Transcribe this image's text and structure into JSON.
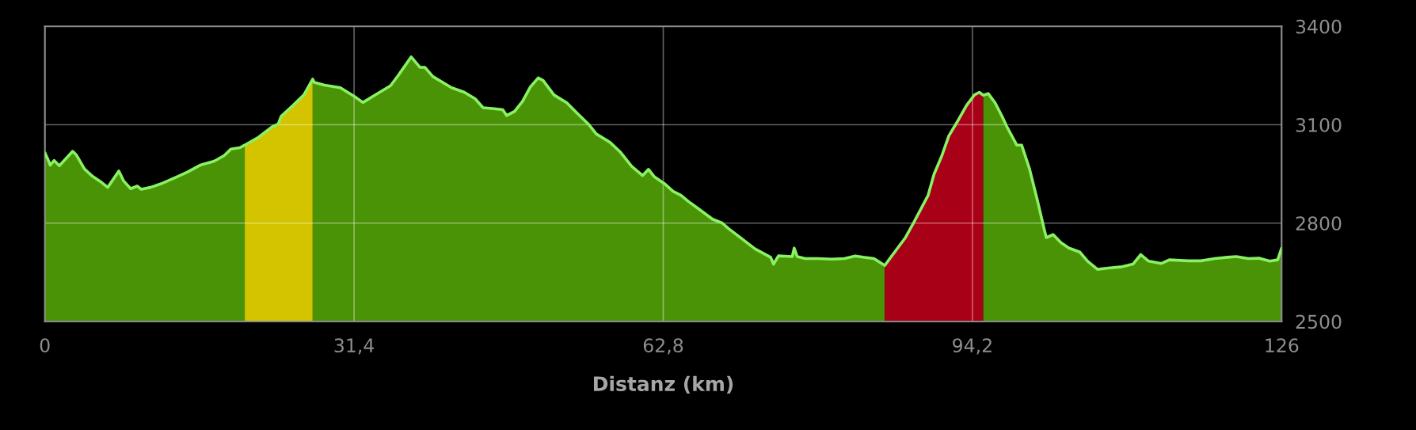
{
  "chart_data": {
    "type": "area",
    "xlabel": "Distanz (km)",
    "xlim": [
      0,
      125.6
    ],
    "xticks": [
      0,
      {
        "value": 31.4,
        "label": "31,4"
      },
      {
        "value": 62.8,
        "label": "62,8"
      },
      {
        "value": 94.2,
        "label": "94,2"
      },
      {
        "value": 125.6,
        "label": "126"
      }
    ],
    "ylim": [
      2500,
      3400
    ],
    "yticks": [
      2500,
      2800,
      3100,
      3400
    ],
    "grid": true,
    "series": [
      {
        "color": "#4a9307",
        "x": [
          0,
          0.27,
          0.54,
          0.94,
          1.47,
          2.14,
          2.82,
          3.22,
          4.02,
          4.83,
          5.63,
          6.38,
          7.51,
          7.99,
          8.71,
          9.38,
          9.79,
          10.72,
          11.8,
          13.4,
          14.5,
          15.8,
          17.2,
          18.2,
          18.9,
          19.8,
          20.3
        ],
        "values": [
          3014,
          2997,
          2977,
          2991,
          2975,
          2997,
          3019,
          3007,
          2965,
          2943,
          2927,
          2909,
          2959,
          2929,
          2905,
          2913,
          2903,
          2909,
          2920,
          2941,
          2956,
          2977,
          2989,
          3006,
          3026,
          3030,
          3038
        ]
      },
      {
        "color": "#d4c400",
        "x": [
          20.3,
          21.7,
          23.1,
          23.7,
          24.0,
          25.2,
          26.3,
          27.2
        ],
        "values": [
          3038,
          3062,
          3094,
          3102,
          3126,
          3159,
          3191,
          3239
        ]
      },
      {
        "color": "#4a9307",
        "x": [
          27.2,
          27.35,
          28.4,
          30.0,
          31.4,
          32.3,
          33.6,
          35.1,
          35.9,
          37.2,
          38.1,
          38.6,
          39.4,
          41.3,
          42.6,
          43.7,
          44.5,
          45.6,
          46.5,
          46.9,
          47.7,
          48.5,
          49.3,
          50.1,
          50.6,
          51.7,
          53.0,
          54.1,
          55.2,
          56.0,
          57.4,
          58.4,
          59.6,
          60.7,
          61.3,
          61.9,
          62.9,
          63.8,
          64.6,
          65.4,
          66.5,
          67.8,
          68.8,
          69.4,
          70.8,
          72.1,
          73.7,
          74.0,
          74.5,
          75.9,
          76.1,
          76.4,
          77.2,
          78.5,
          79.9,
          81.2,
          82.3,
          83.1,
          84.2,
          85.3
        ],
        "values": [
          3239,
          3229,
          3221,
          3213,
          3187,
          3168,
          3192,
          3219,
          3251,
          3307,
          3275,
          3275,
          3247,
          3213,
          3199,
          3179,
          3152,
          3149,
          3146,
          3128,
          3141,
          3171,
          3215,
          3243,
          3235,
          3191,
          3167,
          3134,
          3102,
          3072,
          3046,
          3018,
          2973,
          2945,
          2964,
          2941,
          2921,
          2897,
          2885,
          2865,
          2841,
          2812,
          2800,
          2784,
          2752,
          2722,
          2696,
          2675,
          2700,
          2698,
          2724,
          2698,
          2692,
          2692,
          2690,
          2692,
          2700,
          2696,
          2692,
          2671
        ]
      },
      {
        "color": "#a80016",
        "x": [
          85.3,
          86.6,
          87.4,
          88.2,
          89.0,
          89.7,
          90.3,
          91.1,
          91.8,
          92.6,
          93.6,
          94.4,
          94.9,
          95.3
        ],
        "values": [
          2671,
          2724,
          2756,
          2800,
          2845,
          2885,
          2949,
          3006,
          3066,
          3106,
          3159,
          3191,
          3199,
          3190
        ]
      },
      {
        "color": "#4a9307",
        "x": [
          95.3,
          95.8,
          96.5,
          97.2,
          97.7,
          98.7,
          99.2,
          100.0,
          100.8,
          101.5,
          101.7,
          102.4,
          103.2,
          104.0,
          105.1,
          105.9,
          106.9,
          108.0,
          109.4,
          110.5,
          111.3,
          112.1,
          113.4,
          114.2,
          116.1,
          117.4,
          118.8,
          120.1,
          121.0,
          122.2,
          123.3,
          124.4,
          125.2,
          125.6
        ],
        "values": [
          3190,
          3195,
          3167,
          3126,
          3094,
          3038,
          3038,
          2965,
          2869,
          2780,
          2756,
          2765,
          2740,
          2724,
          2712,
          2684,
          2659,
          2663,
          2667,
          2675,
          2704,
          2684,
          2677,
          2688,
          2685,
          2685,
          2692,
          2696,
          2698,
          2692,
          2693,
          2684,
          2688,
          2724
        ]
      },
      {
        "type": "line",
        "color": "#88f263",
        "x": [
          0,
          0.27,
          0.54,
          0.94,
          1.47,
          2.14,
          2.82,
          3.22,
          4.02,
          4.83,
          5.63,
          6.38,
          7.51,
          7.99,
          8.71,
          9.38,
          9.79,
          10.72,
          11.8,
          13.4,
          14.5,
          15.8,
          17.2,
          18.2,
          18.9,
          19.8,
          20.3,
          21.7,
          23.1,
          23.7,
          24.0,
          25.2,
          26.3,
          27.2,
          27.35,
          28.4,
          30.0,
          31.4,
          32.3,
          33.6,
          35.1,
          35.9,
          37.2,
          38.1,
          38.6,
          39.4,
          41.3,
          42.6,
          43.7,
          44.5,
          45.6,
          46.5,
          46.9,
          47.7,
          48.5,
          49.3,
          50.1,
          50.6,
          51.7,
          53.0,
          54.1,
          55.2,
          56.0,
          57.4,
          58.4,
          59.6,
          60.7,
          61.3,
          61.9,
          62.9,
          63.8,
          64.6,
          65.4,
          66.5,
          67.8,
          68.8,
          69.4,
          70.8,
          72.1,
          73.7,
          74.0,
          74.5,
          75.9,
          76.1,
          76.4,
          77.2,
          78.5,
          79.9,
          81.2,
          82.3,
          83.1,
          84.2,
          85.3,
          86.6,
          87.4,
          88.2,
          89.0,
          89.7,
          90.3,
          91.1,
          91.8,
          92.6,
          93.6,
          94.4,
          94.9,
          95.3,
          95.8,
          96.5,
          97.2,
          97.7,
          98.7,
          99.2,
          100.0,
          100.8,
          101.5,
          101.7,
          102.4,
          103.2,
          104.0,
          105.1,
          105.9,
          106.9,
          108.0,
          109.4,
          110.5,
          111.3,
          112.1,
          113.4,
          114.2,
          116.1,
          117.4,
          118.8,
          120.1,
          121.0,
          122.2,
          123.3,
          124.4,
          125.2,
          125.6
        ],
        "values": [
          3014,
          2997,
          2977,
          2991,
          2975,
          2997,
          3019,
          3007,
          2965,
          2943,
          2927,
          2909,
          2959,
          2929,
          2905,
          2913,
          2903,
          2909,
          2920,
          2941,
          2956,
          2977,
          2989,
          3006,
          3026,
          3030,
          3038,
          3062,
          3094,
          3102,
          3126,
          3159,
          3191,
          3239,
          3229,
          3221,
          3213,
          3187,
          3168,
          3192,
          3219,
          3251,
          3307,
          3275,
          3275,
          3247,
          3213,
          3199,
          3179,
          3152,
          3149,
          3146,
          3128,
          3141,
          3171,
          3215,
          3243,
          3235,
          3191,
          3167,
          3134,
          3102,
          3072,
          3046,
          3018,
          2973,
          2945,
          2964,
          2941,
          2921,
          2897,
          2885,
          2865,
          2841,
          2812,
          2800,
          2784,
          2752,
          2722,
          2696,
          2675,
          2700,
          2698,
          2724,
          2698,
          2692,
          2692,
          2690,
          2692,
          2700,
          2696,
          2692,
          2671,
          2724,
          2756,
          2800,
          2845,
          2885,
          2949,
          3006,
          3066,
          3106,
          3159,
          3191,
          3199,
          3190,
          3195,
          3167,
          3126,
          3094,
          3038,
          3038,
          2965,
          2869,
          2780,
          2756,
          2765,
          2740,
          2724,
          2712,
          2684,
          2659,
          2663,
          2667,
          2675,
          2704,
          2684,
          2677,
          2688,
          2685,
          2685,
          2692,
          2696,
          2698,
          2692,
          2693,
          2684,
          2688,
          2724
        ]
      }
    ]
  }
}
